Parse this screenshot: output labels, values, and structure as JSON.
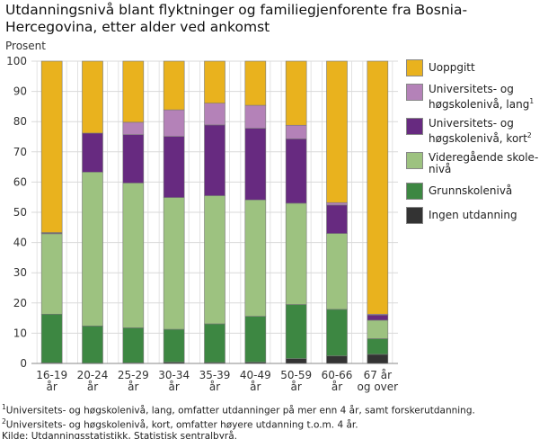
{
  "chart_data": {
    "type": "bar",
    "stacked": true,
    "title": "Utdanningsnivå blant flyktninger og familiegjenforente fra Bosnia-Hercegovina, etter alder ved ankomst",
    "ylabel": "Prosent",
    "ylim": [
      0,
      100
    ],
    "yticks": [
      0,
      10,
      20,
      30,
      40,
      50,
      60,
      70,
      80,
      90,
      100
    ],
    "grid": true,
    "legend_position": "right",
    "categories": [
      [
        "16-19",
        "år"
      ],
      [
        "20-24",
        "år"
      ],
      [
        "25-29",
        "år"
      ],
      [
        "30-34",
        "år"
      ],
      [
        "35-39",
        "år"
      ],
      [
        "40-49",
        "år"
      ],
      [
        "50-59",
        "år"
      ],
      [
        "60-66",
        "år"
      ],
      [
        "67 år",
        "og over"
      ]
    ],
    "series": [
      {
        "name": "Ingen utdanning",
        "color": "#333333",
        "values": [
          0.2,
          0.1,
          0.2,
          0.4,
          0.3,
          0.4,
          1.6,
          2.5,
          3.0
        ]
      },
      {
        "name": "Grunnskolenivå",
        "color": "#3d8742",
        "values": [
          16.1,
          12.3,
          11.6,
          10.9,
          12.8,
          15.2,
          17.9,
          15.4,
          5.2
        ]
      },
      {
        "name": "Videregående skole-nivå",
        "legend_lines": [
          "Videregående skole-",
          "nivå"
        ],
        "color": "#9dc280",
        "values": [
          26.6,
          50.9,
          47.9,
          43.6,
          42.4,
          38.5,
          33.5,
          25.1,
          6.1
        ]
      },
      {
        "name": "Universitets- og høgskolenivå, kort",
        "legend_lines": [
          "Universitets- og",
          "høgskolenivå, kort"
        ],
        "sup": "2",
        "color": "#672a80",
        "values": [
          0.3,
          12.9,
          16.0,
          20.2,
          23.4,
          23.7,
          21.3,
          9.4,
          1.7
        ]
      },
      {
        "name": "Universitets- og høgskolenivå, lang",
        "legend_lines": [
          "Universitets- og",
          "høgskolenivå, lang"
        ],
        "sup": "1",
        "color": "#b482b8",
        "values": [
          0.1,
          0.0,
          4.1,
          8.8,
          7.2,
          7.6,
          4.5,
          0.8,
          0.3
        ]
      },
      {
        "name": "Uoppgitt",
        "color": "#e9b21e",
        "values": [
          56.7,
          23.8,
          20.2,
          16.1,
          13.9,
          14.6,
          21.2,
          46.8,
          83.7
        ]
      }
    ],
    "footnotes": [
      {
        "sup": "1",
        "text": "Universitets- og høgskolenivå, lang, omfatter utdanninger på mer enn 4 år, samt forskerutdanning."
      },
      {
        "sup": "2",
        "text": "Universitets- og høgskolenivå, kort, omfatter høyere utdanning t.o.m. 4 år."
      }
    ],
    "source": "Kilde: Utdanningsstatistikk, Statistisk sentralbyrå."
  }
}
